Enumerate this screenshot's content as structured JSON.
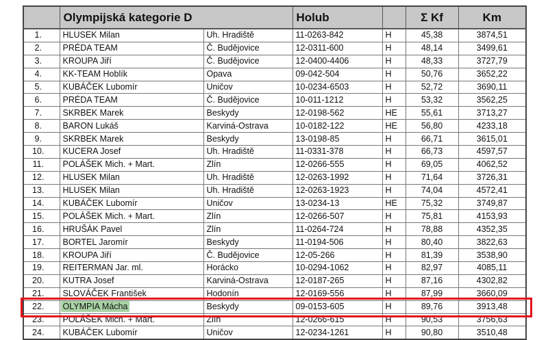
{
  "header": {
    "num": "",
    "name": "Olympijská kategorie D",
    "city": "",
    "holub": "Holub",
    "type": "",
    "kf": "Σ Kf",
    "km": "Km"
  },
  "highlight_color": "#a9d3a5",
  "box_color": "#e3121b",
  "highlighted_row": 22,
  "rows": [
    [
      "1.",
      "HLUSEK Milan",
      "Uh. Hradiště",
      "11-0263-842",
      "H",
      "45,38",
      "3874,51"
    ],
    [
      "2.",
      "PRÉDA TEAM",
      "Č. Budějovice",
      "12-0311-600",
      "H",
      "48,14",
      "3499,61"
    ],
    [
      "3.",
      "KROUPA Jiří",
      "Č. Budějovice",
      "12-0400-4406",
      "H",
      "48,33",
      "3727,79"
    ],
    [
      "4.",
      "KK-TEAM Hoblík",
      "Opava",
      "09-042-504",
      "H",
      "50,76",
      "3652,22"
    ],
    [
      "5.",
      "KUBÁČEK Lubomír",
      "Uničov",
      "10-0234-6503",
      "H",
      "52,72",
      "3690,11"
    ],
    [
      "6.",
      "PRÉDA TEAM",
      "Č. Budějovice",
      "10-011-1212",
      "H",
      "53,32",
      "3562,25"
    ],
    [
      "7.",
      "SKRBEK Marek",
      "Beskydy",
      "12-0198-562",
      "HE",
      "55,61",
      "3713,27"
    ],
    [
      "8.",
      "BARON Lukáš",
      "Karviná-Ostrava",
      "10-0182-122",
      "HE",
      "56,80",
      "4233,18"
    ],
    [
      "9.",
      "SKRBEK Marek",
      "Beskydy",
      "13-0198-85",
      "H",
      "66,71",
      "3615,01"
    ],
    [
      "10.",
      "KUCERA Josef",
      "Uh. Hradiště",
      "11-0331-378",
      "H",
      "66,73",
      "4597,57"
    ],
    [
      "11.",
      "POLÁŠEK Mich. + Mart.",
      "Zlín",
      "12-0266-555",
      "H",
      "69,05",
      "4062,52"
    ],
    [
      "12.",
      "HLUSEK Milan",
      "Uh. Hradiště",
      "12-0263-1992",
      "H",
      "71,64",
      "3726,31"
    ],
    [
      "13.",
      "HLUSEK Milan",
      "Uh. Hradiště",
      "12-0263-1923",
      "H",
      "74,04",
      "4572,41"
    ],
    [
      "14.",
      "KUBÁČEK Lubomír",
      "Uničov",
      "13-0234-13",
      "HE",
      "75,32",
      "3749,87"
    ],
    [
      "15.",
      "POLÁŠEK Mich. + Mart.",
      "Zlín",
      "12-0266-507",
      "H",
      "75,81",
      "4153,93"
    ],
    [
      "16.",
      "HRUŠÁK Pavel",
      "Zlín",
      "11-0264-724",
      "H",
      "78,88",
      "4352,35"
    ],
    [
      "17.",
      "BORTEL Jaromír",
      "Beskydy",
      "11-0194-506",
      "H",
      "80,40",
      "3822,63"
    ],
    [
      "18.",
      "KROUPA Jiří",
      "Č. Budějovice",
      "12-05-266",
      "H",
      "81,39",
      "3538,90"
    ],
    [
      "19.",
      "REITERMAN Jar. ml.",
      "Horácko",
      "10-0294-1062",
      "H",
      "82,97",
      "4085,11"
    ],
    [
      "20.",
      "KUTRA Josef",
      "Karviná-Ostrava",
      "12-0187-265",
      "H",
      "87,16",
      "4302,82"
    ],
    [
      "21.",
      "SLOVÁČEK František",
      "Hodonín",
      "12-0169-556",
      "H",
      "87,99",
      "3660,09"
    ],
    [
      "22.",
      "OLYMPIA Mácha",
      "Beskydy",
      "09-0153-605",
      "H",
      "89,76",
      "3913,48"
    ],
    [
      "23.",
      "POLÁŠEK Mich. + Mart.",
      "Zlín",
      "12-0266-615",
      "H",
      "90,53",
      "3756,63"
    ],
    [
      "24.",
      "KUBÁČEK Lubomír",
      "Uničov",
      "12-0234-1261",
      "H",
      "90,80",
      "3510,48"
    ]
  ]
}
